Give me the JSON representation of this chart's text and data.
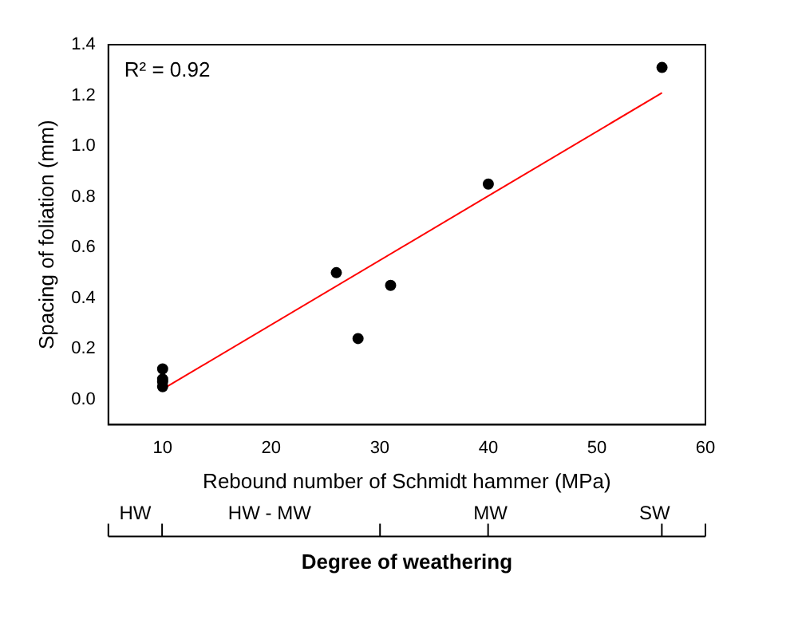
{
  "chart_data": {
    "type": "scatter",
    "xlabel": "Rebound number of Schmidt hammer (MPa)",
    "ylabel": "Spacing of foliation (mm)",
    "xlim": [
      5,
      60
    ],
    "xticks": [
      10,
      20,
      30,
      40,
      50,
      60
    ],
    "ylim": [
      -0.1,
      1.4
    ],
    "yticks": [
      {
        "value": 0,
        "label": "0.0"
      },
      0.2,
      0.4,
      0.6,
      0.8,
      {
        "value": 1,
        "label": "1.0"
      },
      1.2,
      1.4
    ],
    "grid": false,
    "legend": false,
    "series": [
      {
        "color": "#000000",
        "marker": "circle",
        "x": [
          10,
          10,
          10,
          10,
          26,
          28,
          31,
          40,
          56
        ],
        "values": [
          0.12,
          0.08,
          0.07,
          0.05,
          0.5,
          0.24,
          0.45,
          0.85,
          1.31
        ]
      },
      {
        "type": "line",
        "color": "#ff0000",
        "marker": "none",
        "line_style": "solid",
        "x": [
          10,
          56
        ],
        "values": [
          0.04,
          1.21
        ]
      }
    ],
    "annotations": [
      "R² = 0.92",
      "HW",
      "HW - MW",
      "MW",
      "SW",
      "Degree of weathering"
    ]
  }
}
